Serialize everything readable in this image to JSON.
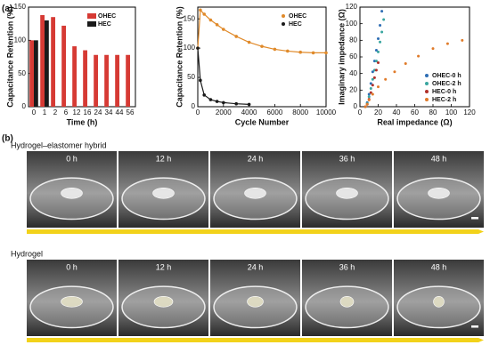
{
  "labels": {
    "a": "(a)",
    "b": "(b)"
  },
  "chart_data": [
    {
      "type": "bar",
      "x_label": "Time (h)",
      "y_label": "Capacitance Retention (%)",
      "categories": [
        "0",
        "1",
        "2",
        "6",
        "12",
        "16",
        "24",
        "34",
        "44",
        "56"
      ],
      "series": [
        {
          "name": "OHEC",
          "color": "#d63a34",
          "values": [
            100,
            138,
            135,
            122,
            91,
            85,
            78,
            78,
            78,
            78
          ]
        },
        {
          "name": "HEC",
          "color": "#1a1a1a",
          "values": [
            100,
            130,
            null,
            null,
            null,
            null,
            null,
            null,
            null,
            null
          ]
        }
      ],
      "ylim": [
        0,
        150
      ],
      "yticks": [
        0,
        50,
        100,
        150
      ],
      "legend": "top-right"
    },
    {
      "type": "line",
      "x_label": "Cycle Number",
      "y_label": "Capacitance Retention (%)",
      "x": [
        0,
        200,
        500,
        1000,
        1500,
        2000,
        3000,
        4000,
        5000,
        6000,
        7000,
        8000,
        9000,
        10000
      ],
      "series": [
        {
          "name": "OHEC",
          "color": "#e08a2a",
          "values": [
            100,
            165,
            158,
            148,
            140,
            132,
            120,
            110,
            103,
            98,
            95,
            93,
            92,
            92
          ]
        },
        {
          "name": "HEC",
          "color": "#1a1a1a",
          "values": [
            100,
            45,
            20,
            12,
            9,
            7,
            5,
            4,
            null,
            null,
            null,
            null,
            null,
            null
          ]
        }
      ],
      "xlim": [
        0,
        10000
      ],
      "xticks": [
        0,
        2000,
        4000,
        6000,
        8000,
        10000
      ],
      "ylim": [
        0,
        170
      ],
      "yticks": [
        0,
        50,
        100,
        150
      ],
      "legend": "top-right"
    },
    {
      "type": "scatter",
      "x_label": "Real impedance (Ω)",
      "y_label": "Imaginary impedance (Ω)",
      "series": [
        {
          "name": "OHEC-0 h",
          "color": "#2e6db4",
          "x": [
            6,
            8,
            10,
            12,
            14,
            16,
            18,
            20,
            22,
            24
          ],
          "values": [
            0,
            5,
            15,
            28,
            42,
            55,
            68,
            82,
            98,
            115
          ]
        },
        {
          "name": "OHEC-2 h",
          "color": "#3aa6a0",
          "x": [
            6,
            8,
            10,
            12,
            14,
            16,
            18,
            20,
            22,
            24,
            26
          ],
          "values": [
            0,
            4,
            12,
            22,
            33,
            44,
            55,
            66,
            78,
            90,
            105
          ]
        },
        {
          "name": "HEC-0 h",
          "color": "#b0302a",
          "x": [
            6,
            8,
            10,
            12,
            14,
            16,
            18,
            20
          ],
          "values": [
            0,
            3,
            9,
            17,
            26,
            35,
            44,
            53
          ]
        },
        {
          "name": "HEC-2 h",
          "color": "#e07b2a",
          "x": [
            6,
            8,
            10,
            14,
            20,
            28,
            38,
            50,
            64,
            80,
            96,
            112
          ],
          "values": [
            0,
            3,
            8,
            15,
            24,
            33,
            42,
            52,
            61,
            70,
            76,
            80
          ]
        }
      ],
      "xlim": [
        0,
        120
      ],
      "xticks": [
        0,
        20,
        40,
        60,
        80,
        100,
        120
      ],
      "ylim": [
        0,
        120
      ],
      "yticks": [
        0,
        20,
        40,
        60,
        80,
        100,
        120
      ],
      "legend": "bottom-right"
    }
  ],
  "photos": [
    {
      "title": "Hydrogel–elastomer hybrid",
      "times": [
        "0 h",
        "12 h",
        "24 h",
        "36 h",
        "48 h"
      ]
    },
    {
      "title": "Hydrogel",
      "times": [
        "0 h",
        "12 h",
        "24 h",
        "36 h",
        "48 h"
      ]
    }
  ]
}
